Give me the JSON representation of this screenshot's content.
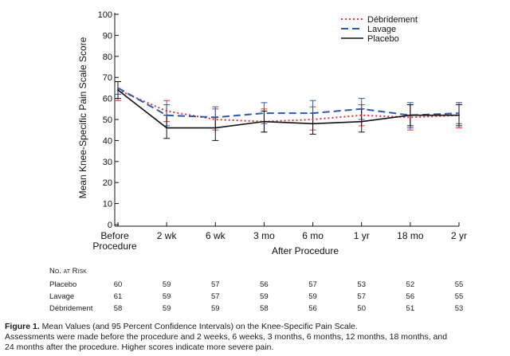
{
  "chart_data": {
    "type": "line",
    "ylabel": "Mean Knee-Specific Pain Scale Score",
    "xlabel": "After Procedure",
    "categories": [
      "Before Procedure",
      "2 wk",
      "6 wk",
      "3 mo",
      "6 mo",
      "1 yr",
      "18 mo",
      "2 yr"
    ],
    "ylim": [
      0,
      100
    ],
    "yticks": [
      0,
      10,
      20,
      30,
      40,
      50,
      60,
      70,
      80,
      90,
      100
    ],
    "grid": false,
    "legend_position": "top-right",
    "series": [
      {
        "name": "Débridement",
        "color": "#e0343a",
        "dash": "dotted",
        "values": [
          64,
          54,
          50,
          49,
          50,
          52,
          51,
          52
        ],
        "ci_low": [
          59,
          49,
          45,
          44,
          45,
          47,
          45,
          46
        ],
        "ci_high": [
          68,
          59,
          55,
          55,
          56,
          57,
          57,
          58
        ]
      },
      {
        "name": "Lavage",
        "color": "#2f5aa8",
        "dash": "dashed",
        "values": [
          65,
          52,
          51,
          53,
          53,
          55,
          52,
          53
        ],
        "ci_low": [
          62,
          47,
          46,
          48,
          48,
          50,
          46,
          48
        ],
        "ci_high": [
          68,
          57,
          56,
          58,
          59,
          60,
          58,
          58
        ]
      },
      {
        "name": "Placebo",
        "color": "#111111",
        "dash": "solid",
        "values": [
          64,
          46,
          46,
          49,
          48,
          49,
          52,
          52
        ],
        "ci_low": [
          60,
          41,
          40,
          44,
          43,
          44,
          47,
          47
        ],
        "ci_high": [
          68,
          52,
          51,
          54,
          53,
          55,
          57,
          57
        ]
      }
    ]
  },
  "risk_table": {
    "header": "No. at Risk",
    "rows": [
      {
        "label": "Placebo",
        "values": [
          "60",
          "59",
          "57",
          "56",
          "57",
          "53",
          "52",
          "55"
        ]
      },
      {
        "label": "Lavage",
        "values": [
          "61",
          "59",
          "57",
          "59",
          "59",
          "57",
          "56",
          "55"
        ]
      },
      {
        "label": "Débridement",
        "values": [
          "58",
          "59",
          "59",
          "58",
          "56",
          "50",
          "51",
          "53"
        ]
      }
    ]
  },
  "caption": {
    "label": "Figure 1.",
    "title": " Mean Values (and 95 Percent Confidence Intervals) on the Knee-Specific Pain Scale.",
    "line2": "Assessments were made before the procedure and 2 weeks, 6 weeks, 3 months, 6 months, 12 months, 18 months, and",
    "line3": "24 months after the procedure. Higher scores indicate more severe pain."
  }
}
